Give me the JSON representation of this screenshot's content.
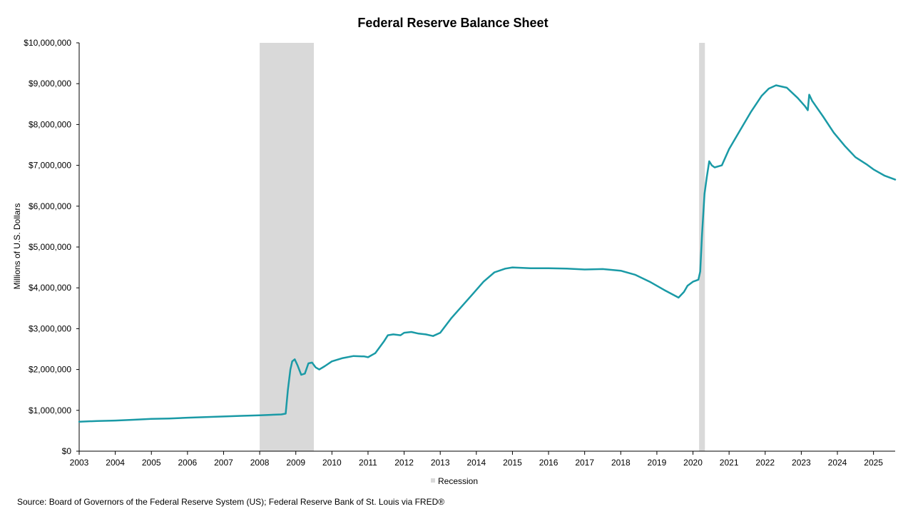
{
  "chart_data": {
    "type": "line",
    "title": "Federal Reserve Balance Sheet",
    "xlabel": "",
    "ylabel": "Millions of U.S. Dollars",
    "xlim": [
      2003,
      2025.6
    ],
    "ylim": [
      0,
      10000000
    ],
    "x_ticks": [
      "2003",
      "2004",
      "2005",
      "2006",
      "2007",
      "2008",
      "2009",
      "2010",
      "2011",
      "2012",
      "2013",
      "2014",
      "2015",
      "2016",
      "2017",
      "2018",
      "2019",
      "2020",
      "2021",
      "2022",
      "2023",
      "2024",
      "2025"
    ],
    "y_ticks": [
      "$0",
      "$1,000,000",
      "$2,000,000",
      "$3,000,000",
      "$4,000,000",
      "$5,000,000",
      "$6,000,000",
      "$7,000,000",
      "$8,000,000",
      "$9,000,000",
      "$10,000,000"
    ],
    "grid": false,
    "series": [
      {
        "color": "#1a9aa6",
        "points": [
          [
            2003.0,
            720000
          ],
          [
            2003.5,
            740000
          ],
          [
            2004.0,
            750000
          ],
          [
            2004.5,
            770000
          ],
          [
            2005.0,
            790000
          ],
          [
            2005.5,
            800000
          ],
          [
            2006.0,
            820000
          ],
          [
            2006.5,
            835000
          ],
          [
            2007.0,
            850000
          ],
          [
            2007.5,
            865000
          ],
          [
            2008.0,
            880000
          ],
          [
            2008.3,
            890000
          ],
          [
            2008.6,
            900000
          ],
          [
            2008.72,
            920000
          ],
          [
            2008.78,
            1500000
          ],
          [
            2008.85,
            2000000
          ],
          [
            2008.9,
            2200000
          ],
          [
            2008.97,
            2250000
          ],
          [
            2009.05,
            2100000
          ],
          [
            2009.15,
            1870000
          ],
          [
            2009.25,
            1900000
          ],
          [
            2009.35,
            2150000
          ],
          [
            2009.45,
            2170000
          ],
          [
            2009.55,
            2050000
          ],
          [
            2009.65,
            2000000
          ],
          [
            2009.8,
            2080000
          ],
          [
            2010.0,
            2200000
          ],
          [
            2010.3,
            2280000
          ],
          [
            2010.6,
            2330000
          ],
          [
            2010.9,
            2320000
          ],
          [
            2011.0,
            2300000
          ],
          [
            2011.2,
            2400000
          ],
          [
            2011.45,
            2700000
          ],
          [
            2011.55,
            2840000
          ],
          [
            2011.7,
            2860000
          ],
          [
            2011.9,
            2840000
          ],
          [
            2012.0,
            2900000
          ],
          [
            2012.2,
            2920000
          ],
          [
            2012.4,
            2880000
          ],
          [
            2012.6,
            2860000
          ],
          [
            2012.8,
            2820000
          ],
          [
            2013.0,
            2900000
          ],
          [
            2013.3,
            3250000
          ],
          [
            2013.6,
            3550000
          ],
          [
            2013.9,
            3850000
          ],
          [
            2014.2,
            4150000
          ],
          [
            2014.5,
            4380000
          ],
          [
            2014.8,
            4470000
          ],
          [
            2015.0,
            4500000
          ],
          [
            2015.5,
            4480000
          ],
          [
            2016.0,
            4480000
          ],
          [
            2016.5,
            4470000
          ],
          [
            2017.0,
            4450000
          ],
          [
            2017.5,
            4460000
          ],
          [
            2018.0,
            4420000
          ],
          [
            2018.4,
            4320000
          ],
          [
            2018.8,
            4150000
          ],
          [
            2019.2,
            3950000
          ],
          [
            2019.6,
            3760000
          ],
          [
            2019.75,
            3900000
          ],
          [
            2019.85,
            4050000
          ],
          [
            2020.0,
            4150000
          ],
          [
            2020.15,
            4200000
          ],
          [
            2020.2,
            4400000
          ],
          [
            2020.25,
            5300000
          ],
          [
            2020.32,
            6300000
          ],
          [
            2020.38,
            6700000
          ],
          [
            2020.45,
            7100000
          ],
          [
            2020.52,
            7000000
          ],
          [
            2020.6,
            6950000
          ],
          [
            2020.8,
            7000000
          ],
          [
            2021.0,
            7400000
          ],
          [
            2021.3,
            7850000
          ],
          [
            2021.6,
            8300000
          ],
          [
            2021.9,
            8700000
          ],
          [
            2022.1,
            8880000
          ],
          [
            2022.3,
            8960000
          ],
          [
            2022.6,
            8900000
          ],
          [
            2022.9,
            8650000
          ],
          [
            2023.1,
            8450000
          ],
          [
            2023.18,
            8350000
          ],
          [
            2023.22,
            8730000
          ],
          [
            2023.3,
            8580000
          ],
          [
            2023.6,
            8200000
          ],
          [
            2023.9,
            7800000
          ],
          [
            2024.2,
            7480000
          ],
          [
            2024.5,
            7200000
          ],
          [
            2024.8,
            7030000
          ],
          [
            2025.0,
            6900000
          ],
          [
            2025.3,
            6750000
          ],
          [
            2025.6,
            6650000
          ]
        ]
      }
    ],
    "recessions": [
      [
        2008.0,
        2009.5
      ],
      [
        2020.17,
        2020.33
      ]
    ],
    "legend": {
      "position": "bottom-center",
      "entries": [
        {
          "label": "Recession",
          "color": "#d9d9d9"
        }
      ]
    },
    "source": "Source: Board of Governors of the Federal Reserve System (US); Federal Reserve Bank of St. Louis via FRED®"
  }
}
